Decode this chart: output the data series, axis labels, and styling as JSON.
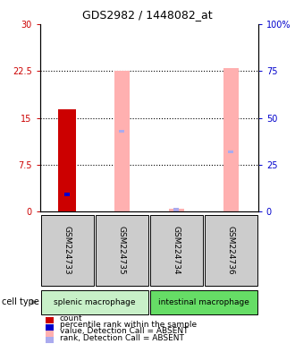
{
  "title": "GDS2982 / 1448082_at",
  "samples": [
    "GSM224733",
    "GSM224735",
    "GSM224734",
    "GSM224736"
  ],
  "cell_types": [
    {
      "label": "splenic macrophage",
      "color": "#c8f0c8",
      "span": [
        0,
        2
      ]
    },
    {
      "label": "intestinal macrophage",
      "color": "#66dd66",
      "span": [
        2,
        4
      ]
    }
  ],
  "ylim_left": [
    0,
    30
  ],
  "ylim_right": [
    0,
    100
  ],
  "yticks_left": [
    0,
    7.5,
    15,
    22.5,
    30
  ],
  "yticks_right": [
    0,
    25,
    50,
    75,
    100
  ],
  "ytick_labels_left": [
    "0",
    "7.5",
    "15",
    "22.5",
    "30"
  ],
  "ytick_labels_right": [
    "0",
    "25",
    "50",
    "75",
    "100%"
  ],
  "bars": [
    {
      "sample": "GSM224733",
      "count_value": 16.3,
      "percentile_value": 9.0,
      "absent_value": null,
      "absent_rank": null,
      "is_absent": false
    },
    {
      "sample": "GSM224735",
      "count_value": null,
      "percentile_value": null,
      "absent_value": 22.5,
      "absent_rank": 43.0,
      "is_absent": true
    },
    {
      "sample": "GSM224734",
      "count_value": null,
      "percentile_value": null,
      "absent_value": 0.5,
      "absent_rank": 1.0,
      "is_absent": true
    },
    {
      "sample": "GSM224736",
      "count_value": null,
      "percentile_value": null,
      "absent_value": 23.0,
      "absent_rank": 32.0,
      "is_absent": true
    }
  ],
  "colors": {
    "count": "#cc0000",
    "percentile": "#0000cc",
    "absent_value": "#ffb0b0",
    "absent_rank": "#aaaaee",
    "left_axis": "#cc0000",
    "right_axis": "#0000cc",
    "sample_bg": "#cccccc",
    "grid_dot": "#000000"
  },
  "legend": [
    {
      "color": "#cc0000",
      "label": "count"
    },
    {
      "color": "#0000cc",
      "label": "percentile rank within the sample"
    },
    {
      "color": "#ffb0b0",
      "label": "value, Detection Call = ABSENT"
    },
    {
      "color": "#aaaaee",
      "label": "rank, Detection Call = ABSENT"
    }
  ]
}
